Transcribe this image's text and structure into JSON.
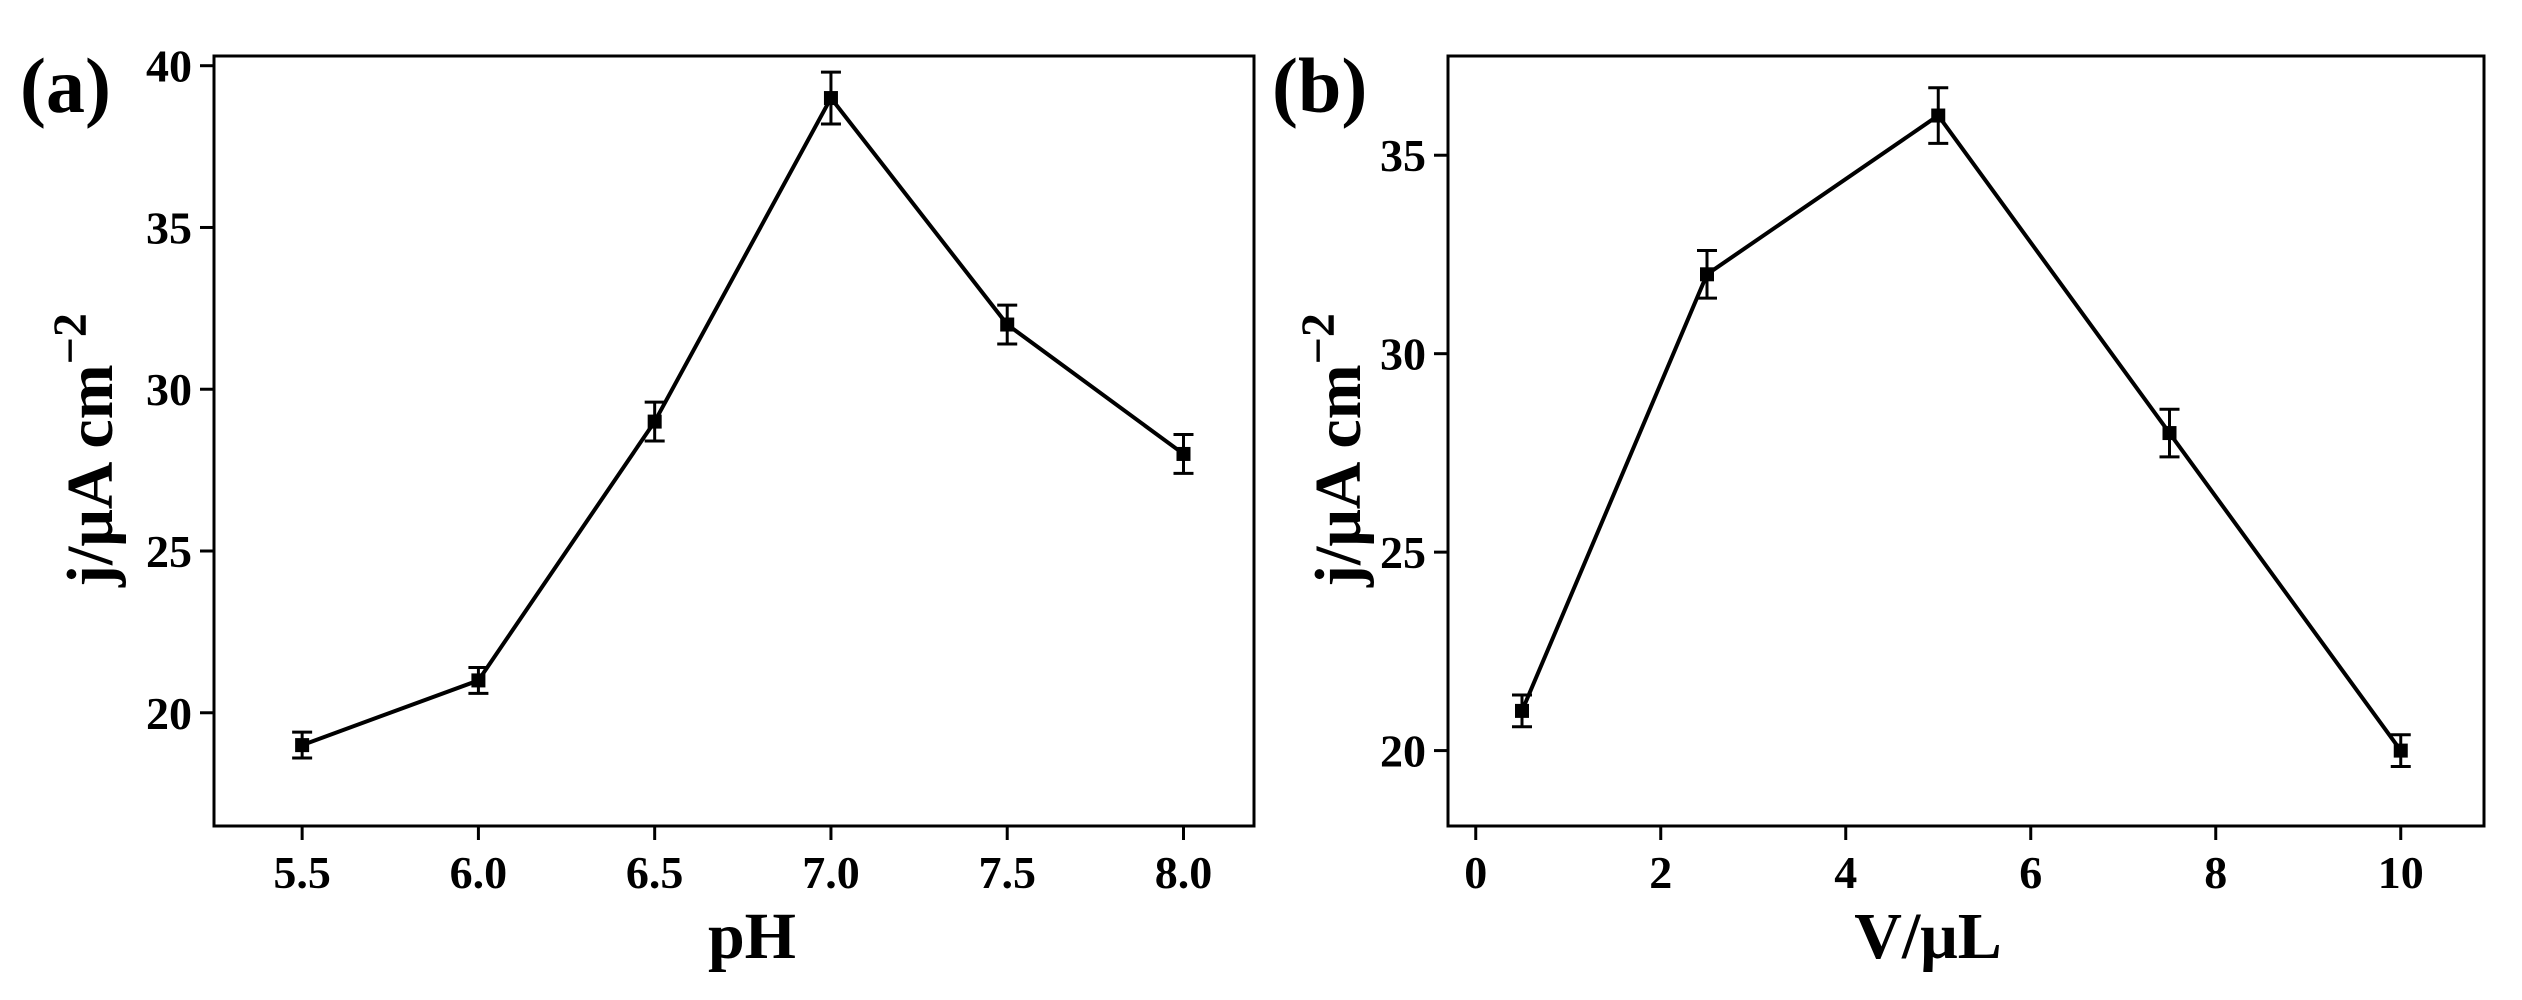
{
  "chart_data": [
    {
      "type": "line",
      "panel_label": "(a)",
      "xlabel": "pH",
      "ylabel": "j/μA cm",
      "ylabel_sup": "−2",
      "x": [
        5.5,
        6.0,
        6.5,
        7.0,
        7.5,
        8.0
      ],
      "values": [
        19,
        21,
        29,
        39,
        32,
        28
      ],
      "errors": [
        0.4,
        0.4,
        0.6,
        0.8,
        0.6,
        0.6
      ],
      "xlim": [
        5.25,
        8.2
      ],
      "ylim": [
        16.5,
        40.3
      ],
      "xticks": [
        5.5,
        6.0,
        6.5,
        7.0,
        7.5,
        8.0
      ],
      "xtick_labels": [
        "5.5",
        "6.0",
        "6.5",
        "7.0",
        "7.5",
        "8.0"
      ],
      "yticks": [
        20,
        25,
        30,
        35,
        40
      ],
      "ytick_labels": [
        "20",
        "25",
        "30",
        "35",
        "40"
      ],
      "grid": false,
      "marker": "square",
      "color": "#000000"
    },
    {
      "type": "line",
      "panel_label": "(b)",
      "xlabel": "V/μL",
      "ylabel": "j/μA cm",
      "ylabel_sup": "−2",
      "x": [
        0.5,
        2.5,
        5,
        7.5,
        10
      ],
      "values": [
        21,
        32,
        36,
        28,
        20
      ],
      "errors": [
        0.4,
        0.6,
        0.7,
        0.6,
        0.4
      ],
      "xlim": [
        -0.3,
        10.9
      ],
      "ylim": [
        18.1,
        37.5
      ],
      "xticks": [
        0,
        2,
        4,
        6,
        8,
        10
      ],
      "xtick_labels": [
        "0",
        "2",
        "4",
        "6",
        "8",
        "10"
      ],
      "yticks": [
        20,
        25,
        30,
        35
      ],
      "ytick_labels": [
        "20",
        "25",
        "30",
        "35"
      ],
      "grid": false,
      "marker": "square",
      "color": "#000000"
    }
  ]
}
